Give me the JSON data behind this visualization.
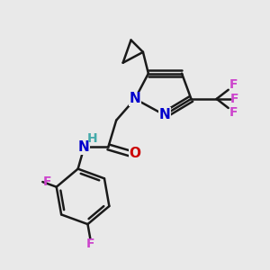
{
  "background_color": "#e9e9e9",
  "bond_color": "#1a1a1a",
  "bond_width": 1.8,
  "N_color": "#0000cc",
  "O_color": "#cc0000",
  "F_color": "#cc44cc",
  "H_color": "#44aaaa",
  "font_size": 10,
  "figsize": [
    3.0,
    3.0
  ],
  "dpi": 100,
  "xlim": [
    0,
    10
  ],
  "ylim": [
    0,
    10
  ]
}
